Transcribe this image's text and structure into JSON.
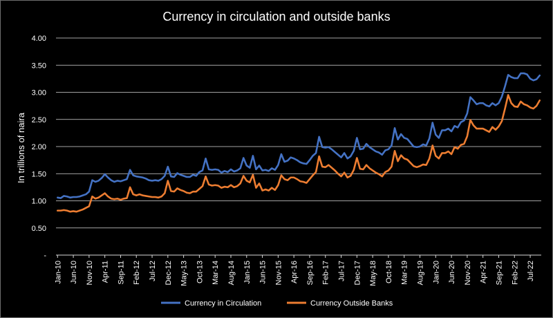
{
  "chart_data": {
    "type": "line",
    "title": "Currency in circulation and outside banks",
    "ylabel": "In trillions of naira",
    "xlabel": "",
    "ylim": [
      0,
      4
    ],
    "yticks": [
      "-",
      "0.50",
      "1.00",
      "1.50",
      "2.00",
      "2.50",
      "3.00",
      "3.50",
      "4.00"
    ],
    "grid": true,
    "legend": "bottom",
    "start_month": "2010-01",
    "x_tick_labels": [
      "Jan-10",
      "Jun-10",
      "Nov-10",
      "Apr-11",
      "Sep-11",
      "Feb-12",
      "Jul-12",
      "Dec-12",
      "May-13",
      "Oct-13",
      "Mar-14",
      "Aug-14",
      "Jan-15",
      "Jun-15",
      "Nov-15",
      "Apr-16",
      "Sep-16",
      "Feb-17",
      "Jul-17",
      "Dec-17",
      "May-18",
      "Oct-18",
      "Mar-19",
      "Aug-19",
      "Jan-20",
      "Jun-20",
      "Nov-20",
      "Apr-21",
      "Sep-21",
      "Feb-22",
      "Jul-22"
    ],
    "series": [
      {
        "name": "Currency in Circulation",
        "color": "#4472c4",
        "values": [
          1.06,
          1.05,
          1.09,
          1.08,
          1.06,
          1.07,
          1.07,
          1.08,
          1.1,
          1.12,
          1.17,
          1.38,
          1.35,
          1.37,
          1.42,
          1.49,
          1.43,
          1.38,
          1.35,
          1.37,
          1.36,
          1.38,
          1.4,
          1.57,
          1.47,
          1.45,
          1.44,
          1.43,
          1.41,
          1.38,
          1.37,
          1.38,
          1.37,
          1.4,
          1.46,
          1.63,
          1.45,
          1.44,
          1.51,
          1.48,
          1.46,
          1.44,
          1.44,
          1.48,
          1.46,
          1.53,
          1.56,
          1.78,
          1.58,
          1.57,
          1.58,
          1.57,
          1.52,
          1.55,
          1.53,
          1.58,
          1.54,
          1.56,
          1.6,
          1.79,
          1.65,
          1.61,
          1.83,
          1.58,
          1.65,
          1.56,
          1.57,
          1.55,
          1.6,
          1.57,
          1.66,
          1.86,
          1.72,
          1.74,
          1.8,
          1.78,
          1.75,
          1.71,
          1.69,
          1.68,
          1.75,
          1.83,
          1.88,
          2.18,
          1.99,
          1.98,
          1.99,
          1.95,
          1.9,
          1.85,
          1.8,
          1.88,
          1.78,
          1.82,
          1.92,
          2.16,
          1.95,
          1.96,
          2.05,
          1.99,
          1.95,
          1.91,
          1.89,
          1.85,
          1.93,
          1.95,
          2.02,
          2.34,
          2.13,
          2.23,
          2.16,
          2.14,
          2.07,
          2.0,
          1.99,
          2.0,
          2.04,
          2.02,
          2.15,
          2.44,
          2.22,
          2.16,
          2.3,
          2.3,
          2.33,
          2.28,
          2.38,
          2.35,
          2.45,
          2.48,
          2.61,
          2.91,
          2.85,
          2.78,
          2.8,
          2.8,
          2.76,
          2.74,
          2.8,
          2.76,
          2.8,
          2.92,
          3.11,
          3.32,
          3.28,
          3.26,
          3.26,
          3.35,
          3.35,
          3.33,
          3.25,
          3.22,
          3.24,
          3.31
        ]
      },
      {
        "name": "Currency Outside Banks",
        "color": "#ed7d31",
        "values": [
          0.82,
          0.82,
          0.83,
          0.82,
          0.8,
          0.81,
          0.8,
          0.82,
          0.84,
          0.87,
          0.9,
          1.08,
          1.04,
          1.06,
          1.1,
          1.14,
          1.08,
          1.04,
          1.03,
          1.04,
          1.02,
          1.04,
          1.05,
          1.25,
          1.12,
          1.1,
          1.12,
          1.1,
          1.09,
          1.08,
          1.07,
          1.07,
          1.06,
          1.08,
          1.14,
          1.37,
          1.18,
          1.17,
          1.23,
          1.2,
          1.18,
          1.15,
          1.14,
          1.17,
          1.17,
          1.22,
          1.27,
          1.45,
          1.3,
          1.28,
          1.29,
          1.28,
          1.24,
          1.26,
          1.25,
          1.29,
          1.25,
          1.27,
          1.32,
          1.46,
          1.37,
          1.34,
          1.48,
          1.24,
          1.32,
          1.19,
          1.21,
          1.19,
          1.24,
          1.2,
          1.29,
          1.47,
          1.4,
          1.38,
          1.43,
          1.43,
          1.4,
          1.36,
          1.35,
          1.33,
          1.4,
          1.47,
          1.53,
          1.82,
          1.63,
          1.62,
          1.66,
          1.61,
          1.56,
          1.5,
          1.45,
          1.52,
          1.43,
          1.46,
          1.57,
          1.79,
          1.59,
          1.58,
          1.66,
          1.6,
          1.56,
          1.52,
          1.49,
          1.45,
          1.53,
          1.56,
          1.63,
          1.92,
          1.73,
          1.84,
          1.78,
          1.76,
          1.7,
          1.64,
          1.62,
          1.64,
          1.67,
          1.66,
          1.78,
          2.02,
          1.83,
          1.78,
          1.88,
          1.88,
          1.91,
          1.86,
          1.99,
          1.96,
          2.03,
          2.05,
          2.19,
          2.49,
          2.39,
          2.33,
          2.33,
          2.33,
          2.3,
          2.27,
          2.36,
          2.31,
          2.37,
          2.47,
          2.7,
          2.95,
          2.8,
          2.74,
          2.73,
          2.83,
          2.78,
          2.76,
          2.72,
          2.7,
          2.75,
          2.85
        ]
      }
    ]
  }
}
